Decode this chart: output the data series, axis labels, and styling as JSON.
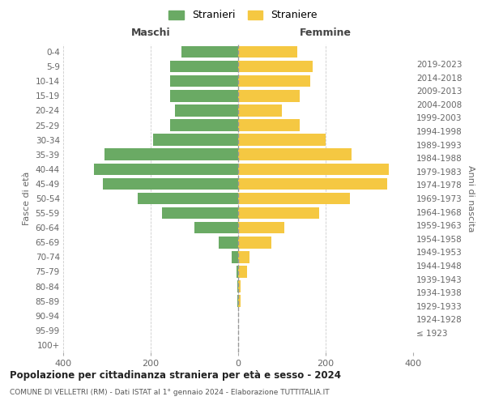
{
  "age_groups": [
    "100+",
    "95-99",
    "90-94",
    "85-89",
    "80-84",
    "75-79",
    "70-74",
    "65-69",
    "60-64",
    "55-59",
    "50-54",
    "45-49",
    "40-44",
    "35-39",
    "30-34",
    "25-29",
    "20-24",
    "15-19",
    "10-14",
    "5-9",
    "0-4"
  ],
  "birth_years": [
    "≤ 1923",
    "1924-1928",
    "1929-1933",
    "1934-1938",
    "1939-1943",
    "1944-1948",
    "1949-1953",
    "1954-1958",
    "1959-1963",
    "1964-1968",
    "1969-1973",
    "1974-1978",
    "1979-1983",
    "1984-1988",
    "1989-1993",
    "1994-1998",
    "1999-2003",
    "2004-2008",
    "2009-2013",
    "2014-2018",
    "2019-2023"
  ],
  "males": [
    0,
    0,
    0,
    2,
    2,
    3,
    15,
    45,
    100,
    175,
    230,
    310,
    330,
    305,
    195,
    155,
    145,
    155,
    155,
    155,
    130
  ],
  "females": [
    0,
    0,
    0,
    5,
    5,
    20,
    25,
    75,
    105,
    185,
    255,
    340,
    345,
    260,
    200,
    140,
    100,
    140,
    165,
    170,
    135
  ],
  "male_color": "#6aaa64",
  "female_color": "#f5c842",
  "background_color": "#ffffff",
  "grid_color": "#cccccc",
  "title": "Popolazione per cittadinanza straniera per età e sesso - 2024",
  "subtitle": "COMUNE DI VELLETRI (RM) - Dati ISTAT al 1° gennaio 2024 - Elaborazione TUTTITALIA.IT",
  "xlabel_left": "Maschi",
  "xlabel_right": "Femmine",
  "ylabel_left": "Fasce di età",
  "ylabel_right": "Anni di nascita",
  "legend_males": "Stranieri",
  "legend_females": "Straniere",
  "xlim": 400,
  "bar_height": 0.8
}
